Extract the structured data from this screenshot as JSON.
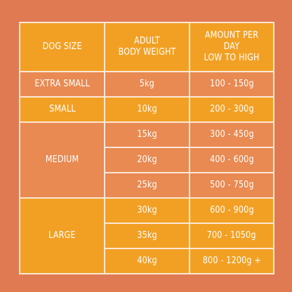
{
  "table": {
    "headers": {
      "dog_size": "DOG SIZE",
      "weight_line1": "ADULT",
      "weight_line2": "BODY WEIGHT",
      "amount_line1": "AMOUNT PER DAY",
      "amount_line2": "LOW TO HIGH"
    },
    "groups": [
      {
        "size": "EXTRA SMALL",
        "color": "#e88a52",
        "rows": [
          {
            "weight": "5kg",
            "amount": "100 - 150g"
          }
        ]
      },
      {
        "size": "SMALL",
        "color": "#f2a024",
        "rows": [
          {
            "weight": "10kg",
            "amount": "200 - 300g"
          }
        ]
      },
      {
        "size": "MEDIUM",
        "color": "#e88a52",
        "rows": [
          {
            "weight": "15kg",
            "amount": "300 - 450g"
          },
          {
            "weight": "20kg",
            "amount": "400 - 600g"
          },
          {
            "weight": "25kg",
            "amount": "500 - 750g"
          }
        ]
      },
      {
        "size": "LARGE",
        "color": "#f2a024",
        "rows": [
          {
            "weight": "30kg",
            "amount": "600 - 900g"
          },
          {
            "weight": "35kg",
            "amount": "700 - 1050g"
          },
          {
            "weight": "40kg",
            "amount": "800 - 1200g +"
          }
        ]
      }
    ],
    "colors": {
      "background": "#e07a52",
      "orange_band": "#f2a024",
      "peach_band": "#e88a52",
      "grid_lines": "#fbe7d6",
      "text": "#ffffff"
    }
  }
}
